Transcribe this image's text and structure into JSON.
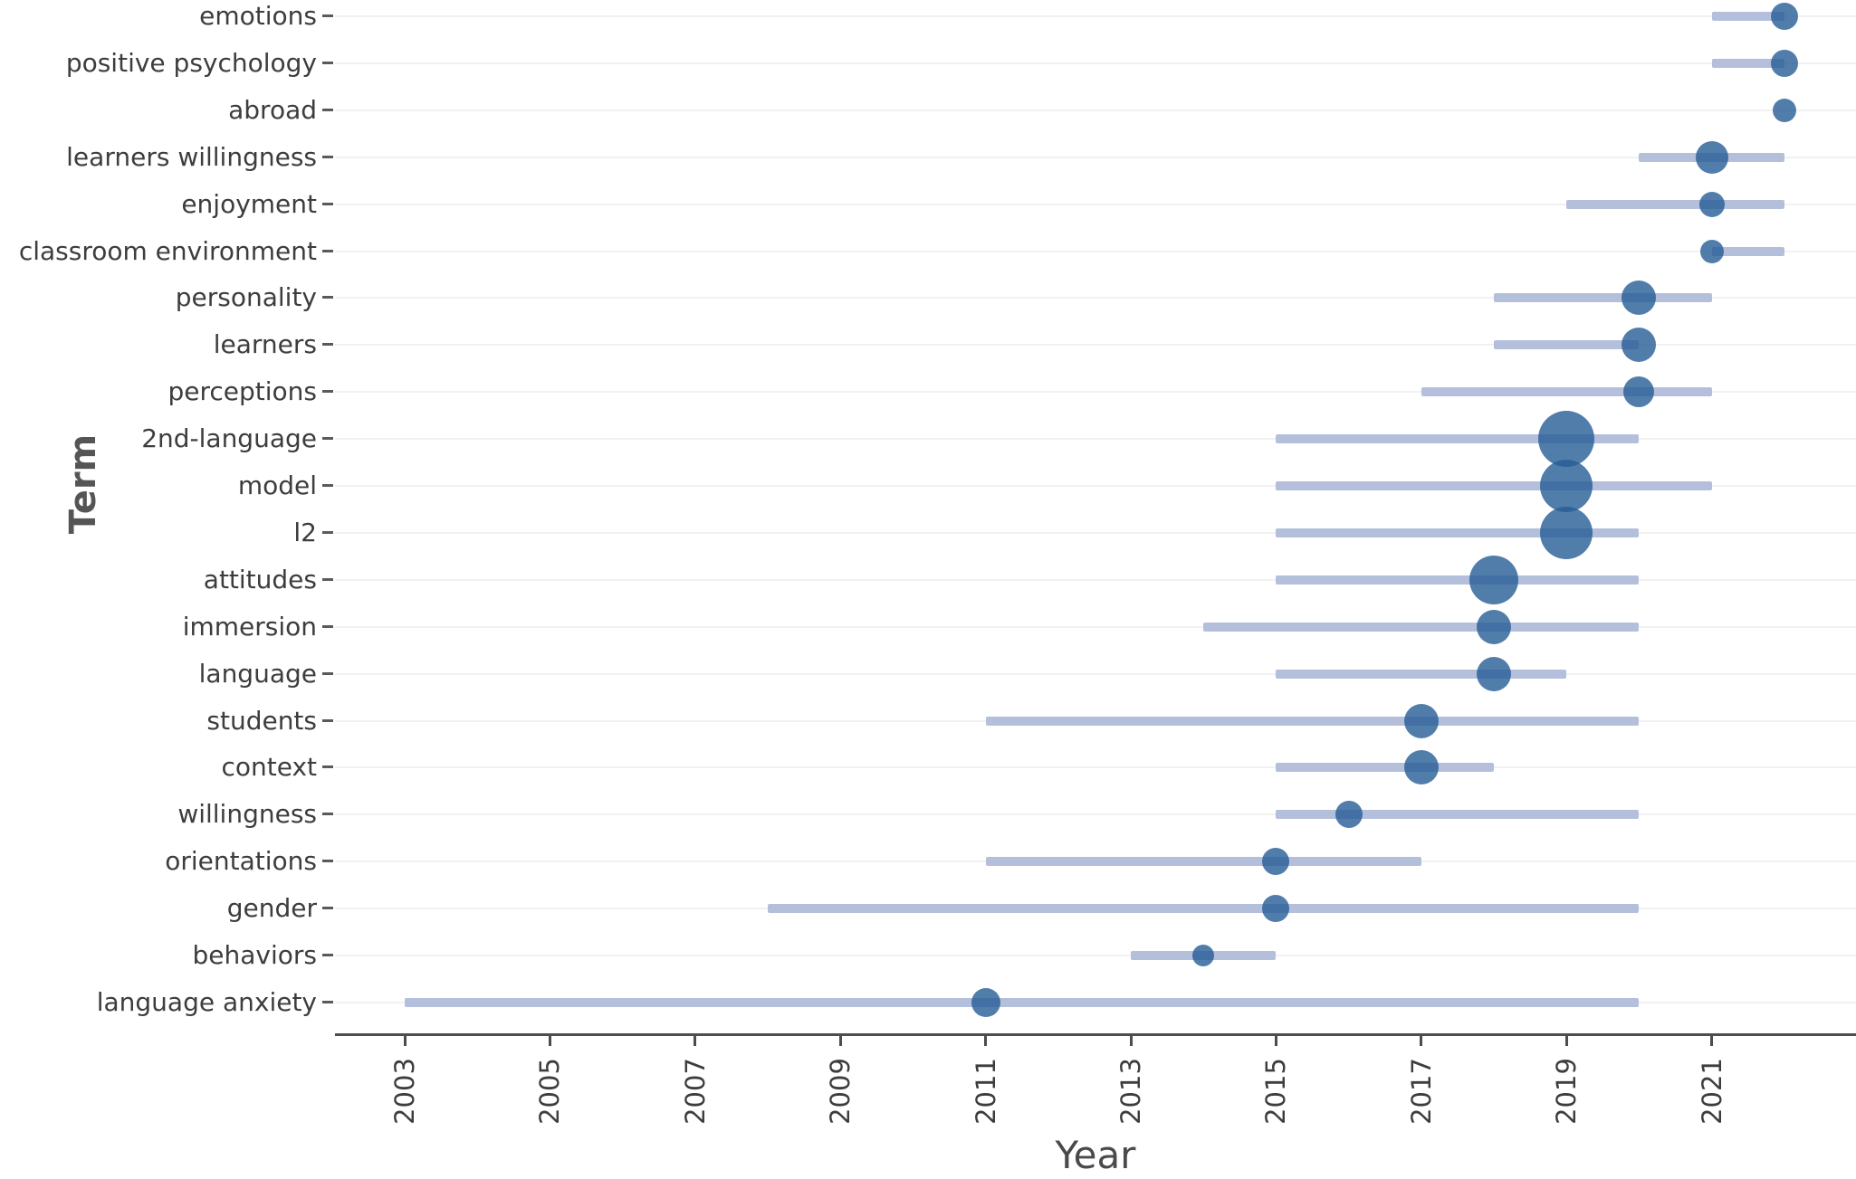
{
  "chart_data": {
    "type": "scatter",
    "subtype": "trend-topics-bubble-timeline",
    "title": "",
    "xlabel": "Year",
    "ylabel": "Term",
    "xlim": [
      2002,
      2023.3
    ],
    "x_ticks": [
      2003,
      2005,
      2007,
      2009,
      2011,
      2013,
      2015,
      2017,
      2019,
      2021
    ],
    "grid": "horizontal-rows-only",
    "legend": "none",
    "bubble_note": "bubble size encodes term frequency; horizontal bar spans first-to-third quartile years; bubble sits on median year",
    "series": [
      {
        "term": "emotions",
        "year_q1": 2021,
        "year_median": 2022,
        "year_q3": 2022,
        "bubble_radius_px": 15
      },
      {
        "term": "positive psychology",
        "year_q1": 2021,
        "year_median": 2022,
        "year_q3": 2022,
        "bubble_radius_px": 15
      },
      {
        "term": "abroad",
        "year_q1": 2022,
        "year_median": 2022,
        "year_q3": 2022,
        "bubble_radius_px": 13
      },
      {
        "term": "learners willingness",
        "year_q1": 2020,
        "year_median": 2021,
        "year_q3": 2022,
        "bubble_radius_px": 18
      },
      {
        "term": "enjoyment",
        "year_q1": 2019,
        "year_median": 2021,
        "year_q3": 2022,
        "bubble_radius_px": 14
      },
      {
        "term": "classroom environment",
        "year_q1": 2021,
        "year_median": 2021,
        "year_q3": 2022,
        "bubble_radius_px": 13
      },
      {
        "term": "personality",
        "year_q1": 2018,
        "year_median": 2020,
        "year_q3": 2021,
        "bubble_radius_px": 19
      },
      {
        "term": "learners",
        "year_q1": 2018,
        "year_median": 2020,
        "year_q3": 2020,
        "bubble_radius_px": 19
      },
      {
        "term": "perceptions",
        "year_q1": 2017,
        "year_median": 2020,
        "year_q3": 2021,
        "bubble_radius_px": 17
      },
      {
        "term": "2nd-language",
        "year_q1": 2015,
        "year_median": 2019,
        "year_q3": 2020,
        "bubble_radius_px": 31
      },
      {
        "term": "model",
        "year_q1": 2015,
        "year_median": 2019,
        "year_q3": 2021,
        "bubble_radius_px": 29
      },
      {
        "term": "l2",
        "year_q1": 2015,
        "year_median": 2019,
        "year_q3": 2020,
        "bubble_radius_px": 29
      },
      {
        "term": "attitudes",
        "year_q1": 2015,
        "year_median": 2018,
        "year_q3": 2020,
        "bubble_radius_px": 27
      },
      {
        "term": "immersion",
        "year_q1": 2014,
        "year_median": 2018,
        "year_q3": 2020,
        "bubble_radius_px": 19
      },
      {
        "term": "language",
        "year_q1": 2015,
        "year_median": 2018,
        "year_q3": 2019,
        "bubble_radius_px": 19
      },
      {
        "term": "students",
        "year_q1": 2011,
        "year_median": 2017,
        "year_q3": 2020,
        "bubble_radius_px": 19
      },
      {
        "term": "context",
        "year_q1": 2015,
        "year_median": 2017,
        "year_q3": 2018,
        "bubble_radius_px": 19
      },
      {
        "term": "willingness",
        "year_q1": 2015,
        "year_median": 2016,
        "year_q3": 2020,
        "bubble_radius_px": 15
      },
      {
        "term": "orientations",
        "year_q1": 2011,
        "year_median": 2015,
        "year_q3": 2017,
        "bubble_radius_px": 15
      },
      {
        "term": "gender",
        "year_q1": 2008,
        "year_median": 2015,
        "year_q3": 2020,
        "bubble_radius_px": 15
      },
      {
        "term": "behaviors",
        "year_q1": 2013,
        "year_median": 2014,
        "year_q3": 2015,
        "bubble_radius_px": 12
      },
      {
        "term": "language anxiety",
        "year_q1": 2003,
        "year_median": 2011,
        "year_q3": 2020,
        "bubble_radius_px": 16
      }
    ],
    "colors": {
      "bubble": "#517bab",
      "range_line": "#b4bfdc",
      "gridline": "#f2f1f1",
      "axis": "#4d4d4d",
      "tick_text": "#3d3d3d",
      "axis_title_text": "#555555"
    }
  }
}
